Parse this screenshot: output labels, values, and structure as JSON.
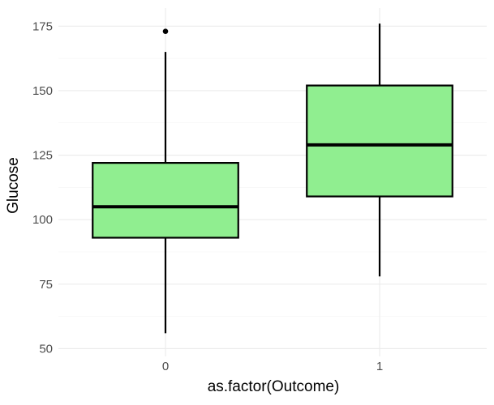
{
  "chart_data": {
    "type": "boxplot",
    "xlabel": "as.factor(Outcome)",
    "ylabel": "Glucose",
    "categories": [
      "0",
      "1"
    ],
    "ylim": [
      47,
      182
    ],
    "y_ticks": [
      50,
      75,
      100,
      125,
      150,
      175
    ],
    "grid": true,
    "fill_color": "#90ee90",
    "boxes": [
      {
        "category": "0",
        "whisker_low": 56,
        "q1": 93,
        "median": 105,
        "q3": 122,
        "whisker_high": 165,
        "outliers": [
          173
        ]
      },
      {
        "category": "1",
        "whisker_low": 78,
        "q1": 109,
        "median": 129,
        "q3": 152,
        "whisker_high": 176,
        "outliers": []
      }
    ]
  }
}
